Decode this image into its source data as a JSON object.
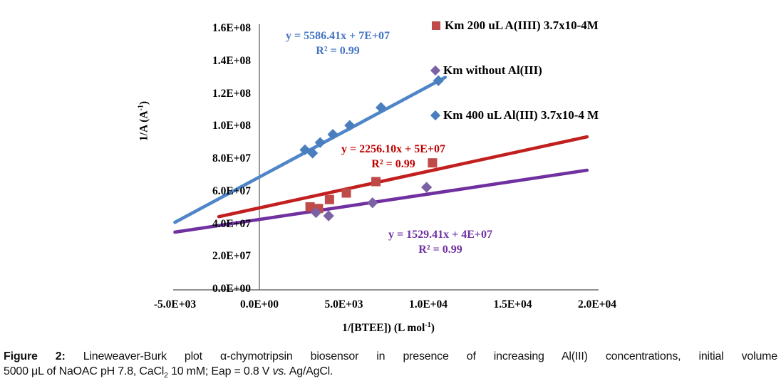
{
  "caption": {
    "label": "Figure 2:",
    "line1_rest": " Lineweaver-Burk plot α-chymotripsin biosensor in presence of increasing Al(III) concentrations, initial volume",
    "line2_start": "5000 μL of NaOAC pH 7.8, CaCl",
    "line2_sub": "2",
    "line2_mid": " 10 mM; Eap = 0.8 V ",
    "line2_vs": "vs.",
    "line2_end": " Ag/AgCl."
  },
  "chart_data": {
    "type": "scatter",
    "title": "",
    "xlabel": "1/[BTEE]) (L mol-1)",
    "ylabel": "1/A (A-1)",
    "xlim": [
      -5000,
      20000
    ],
    "ylim": [
      0,
      160000000.0
    ],
    "grid": false,
    "legend_position": "right",
    "axis_color": "#6e6e6e",
    "axis_titles": {
      "y": {
        "prefix": "1/A (A",
        "sup": "-1",
        "suffix": ")"
      },
      "x": {
        "prefix": "1/[BTEE]) (L mol",
        "sup": "-1",
        "suffix": ")"
      }
    },
    "x_ticks": [
      {
        "label": "-5.0E+03",
        "value": -5000
      },
      {
        "label": "0.0E+00",
        "value": 0
      },
      {
        "label": "5.0E+03",
        "value": 5000
      },
      {
        "label": "1.0E+04",
        "value": 10000
      },
      {
        "label": "1.5E+04",
        "value": 15000
      },
      {
        "label": "2.0E+04",
        "value": 20000
      }
    ],
    "y_ticks": [
      {
        "label": "0.0E+00",
        "value": 0
      },
      {
        "label": "2.0E+07",
        "value": 20000000.0
      },
      {
        "label": "4.0E+07",
        "value": 40000000.0
      },
      {
        "label": "6.0E+07",
        "value": 60000000.0
      },
      {
        "label": "8.0E+07",
        "value": 80000000.0
      },
      {
        "label": "1.0E+08",
        "value": 100000000.0
      },
      {
        "label": "1.2E+08",
        "value": 120000000.0
      },
      {
        "label": "1.4E+08",
        "value": 140000000.0
      },
      {
        "label": "1.6E+08",
        "value": 160000000.0
      }
    ],
    "series": [
      {
        "id": "km-200ul-aliii",
        "name": "Km 200 uL A(IIII) 3.7x10-4M",
        "marker": "square",
        "marker_color": "#BE4B48",
        "line_color": "#C21F1F",
        "text_color": "#C00000",
        "points": [
          [
            3000,
            50500000.0
          ],
          [
            3500,
            49500000.0
          ],
          [
            4150,
            55000000.0
          ],
          [
            5150,
            59000000.0
          ],
          [
            6900,
            66000000.0
          ],
          [
            10250,
            77500000.0
          ]
        ],
        "trendline": {
          "equation": "y = 2256.10x + 5E+07",
          "r2": "R² = 0.99",
          "x1": -2400,
          "y1": 44500000.0,
          "x2": 19400,
          "y2": 93500000.0
        }
      },
      {
        "id": "km-without-aliii",
        "name": "Km without Al(III)",
        "marker": "diamond",
        "marker_color": "#7B62A5",
        "line_color": "#7030A0",
        "text_color": "#7030A0",
        "points": [
          [
            3350,
            47000000.0
          ],
          [
            4100,
            45000000.0
          ],
          [
            6700,
            53000000.0
          ],
          [
            9900,
            62500000.0
          ]
        ],
        "trendline": {
          "equation": "y = 1529.41x + 4E+07",
          "r2": "R² = 0.99",
          "x1": -5000,
          "y1": 35000000.0,
          "x2": 19400,
          "y2": 73000000.0
        }
      },
      {
        "id": "km-400ul-aliii",
        "name": "Km 400 uL Al(III) 3.7x10-4 M",
        "marker": "diamond",
        "marker_color": "#4A7EBE",
        "line_color": "#4E86C8",
        "text_color": "#4574C4",
        "points": [
          [
            2700,
            85500000.0
          ],
          [
            3150,
            83500000.0
          ],
          [
            3600,
            90000000.0
          ],
          [
            4350,
            95000000.0
          ],
          [
            5350,
            100500000.0
          ],
          [
            7200,
            111500000.0
          ],
          [
            10600,
            128000000.0
          ]
        ],
        "trendline": {
          "equation": "y = 5586.41x + 7E+07",
          "r2": "R² = 0.99",
          "x1": -5000,
          "y1": 41000000.0,
          "x2": 11000,
          "y2": 130000000.0
        }
      }
    ]
  }
}
